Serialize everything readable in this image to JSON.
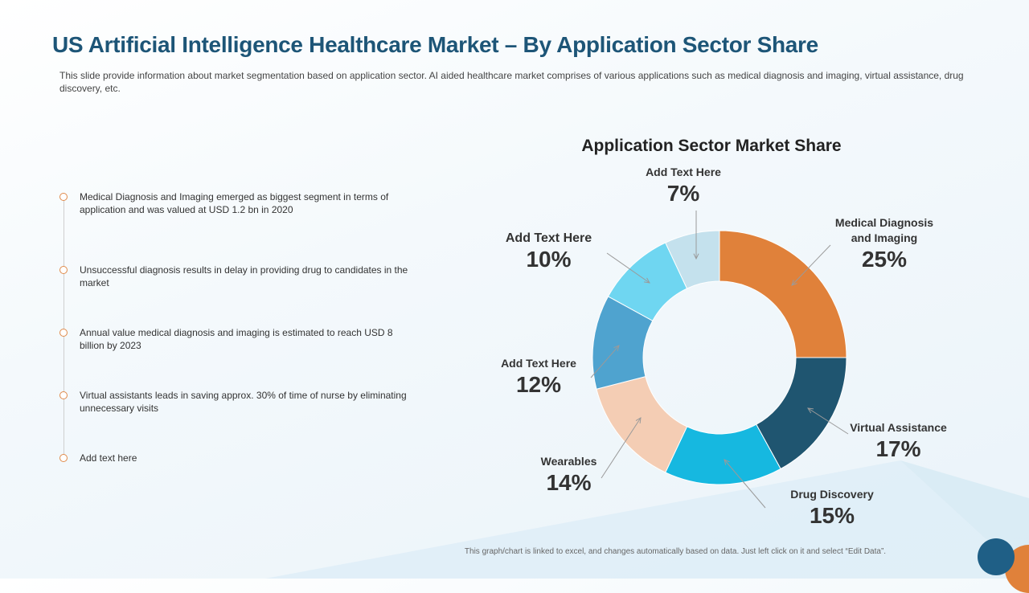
{
  "slide": {
    "title": "US Artificial Intelligence Healthcare Market – By Application Sector Share",
    "subtitle": "This slide provide information about market segmentation based on application sector. AI aided healthcare market comprises of various applications such as medical diagnosis and imaging, virtual assistance, drug discovery, etc.",
    "footnote": "This graph/chart is linked to excel, and changes automatically  based on data. Just left click on it and select “Edit Data”."
  },
  "timeline": {
    "items": [
      "Medical Diagnosis and Imaging emerged as biggest segment in terms of application and was valued at USD 1.2 bn in 2020",
      "Unsuccessful diagnosis results in delay in providing drug to candidates in the market",
      "Annual value medical diagnosis and imaging is estimated to reach USD 8 billion by 2023",
      "Virtual assistants leads in saving approx. 30% of time of nurse by eliminating unnecessary visits",
      "Add text here"
    ],
    "dot_color": "#e08a4a"
  },
  "chart_data": {
    "type": "pie",
    "donut": true,
    "title": "Application Sector Market Share",
    "categories": [
      "Medical Diagnosis and Imaging",
      "Virtual Assistance",
      "Drug Discovery",
      "Wearables",
      "Add Text Here",
      "Add Text Here",
      "Add Text Here"
    ],
    "values": [
      25,
      17,
      15,
      14,
      12,
      10,
      7
    ],
    "labels": [
      "25%",
      "17%",
      "15%",
      "14%",
      "12%",
      "10%",
      "7%"
    ],
    "colors": [
      "#e0813a",
      "#1f5570",
      "#16b8e0",
      "#f4cdb4",
      "#4fa3cf",
      "#6fd6f1",
      "#c4e1ed"
    ],
    "start_angle": "12 o'clock",
    "direction": "clockwise",
    "legend": "none"
  }
}
